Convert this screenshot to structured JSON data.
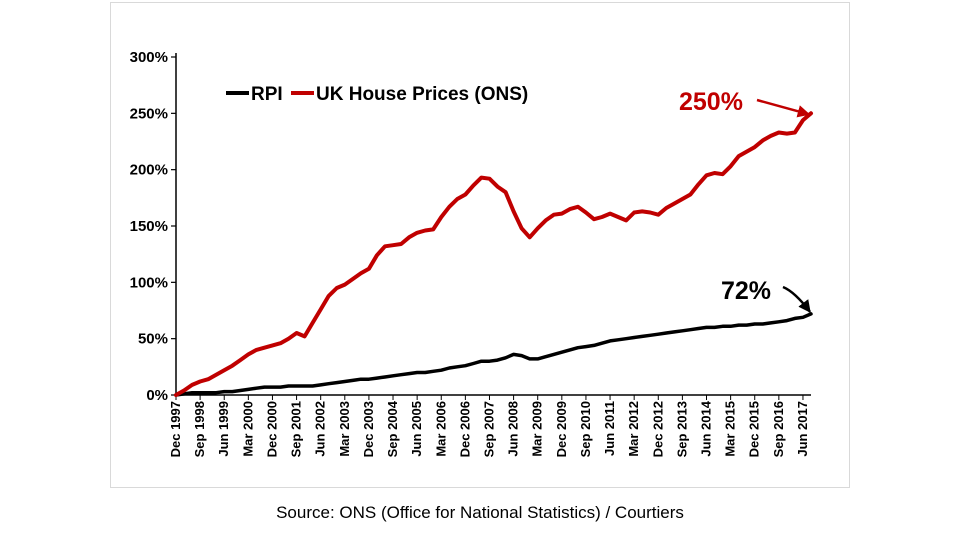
{
  "source_note": "Source: ONS (Office for National Statistics) / Courtiers",
  "chart_data": {
    "type": "line",
    "title": "",
    "xlabel": "",
    "ylabel": "",
    "ylim": [
      0,
      300
    ],
    "yticks": [
      "0%",
      "50%",
      "100%",
      "150%",
      "200%",
      "250%",
      "300%"
    ],
    "legend": {
      "placement": "top-left",
      "entries": [
        "RPI",
        "UK House Prices (ONS)"
      ]
    },
    "x_tick_labels": [
      "Dec 1997",
      "Sep 1998",
      "Jun 1999",
      "Mar 2000",
      "Dec 2000",
      "Sep 2001",
      "Jun 2002",
      "Mar 2003",
      "Dec 2003",
      "Sep 2004",
      "Jun 2005",
      "Mar 2006",
      "Dec 2006",
      "Sep 2007",
      "Jun 2008",
      "Mar 2009",
      "Dec 2009",
      "Sep 2010",
      "Jun 2011",
      "Mar 2012",
      "Dec 2012",
      "Sep 2013",
      "Jun 2014",
      "Mar 2015",
      "Dec 2015",
      "Sep 2016",
      "Jun 2017"
    ],
    "x": [
      "Dec 1997",
      "Mar 1998",
      "Jun 1998",
      "Sep 1998",
      "Dec 1998",
      "Mar 1999",
      "Jun 1999",
      "Sep 1999",
      "Dec 1999",
      "Mar 2000",
      "Jun 2000",
      "Sep 2000",
      "Dec 2000",
      "Mar 2001",
      "Jun 2001",
      "Sep 2001",
      "Dec 2001",
      "Mar 2002",
      "Jun 2002",
      "Sep 2002",
      "Dec 2002",
      "Mar 2003",
      "Jun 2003",
      "Sep 2003",
      "Dec 2003",
      "Mar 2004",
      "Jun 2004",
      "Sep 2004",
      "Dec 2004",
      "Mar 2005",
      "Jun 2005",
      "Sep 2005",
      "Dec 2005",
      "Mar 2006",
      "Jun 2006",
      "Sep 2006",
      "Dec 2006",
      "Mar 2007",
      "Jun 2007",
      "Sep 2007",
      "Dec 2007",
      "Mar 2008",
      "Jun 2008",
      "Sep 2008",
      "Dec 2008",
      "Mar 2009",
      "Jun 2009",
      "Sep 2009",
      "Dec 2009",
      "Mar 2010",
      "Jun 2010",
      "Sep 2010",
      "Dec 2010",
      "Mar 2011",
      "Jun 2011",
      "Sep 2011",
      "Dec 2011",
      "Mar 2012",
      "Jun 2012",
      "Sep 2012",
      "Dec 2012",
      "Mar 2013",
      "Jun 2013",
      "Sep 2013",
      "Dec 2013",
      "Mar 2014",
      "Jun 2014",
      "Sep 2014",
      "Dec 2014",
      "Mar 2015",
      "Jun 2015",
      "Sep 2015",
      "Dec 2015",
      "Mar 2016",
      "Jun 2016",
      "Sep 2016",
      "Dec 2016",
      "Mar 2017",
      "Jun 2017",
      "Sep 2017"
    ],
    "series": [
      {
        "name": "RPI",
        "color": "#000000",
        "values": [
          0,
          1,
          2,
          2,
          2,
          2,
          3,
          3,
          4,
          5,
          6,
          7,
          7,
          7,
          8,
          8,
          8,
          8,
          9,
          10,
          11,
          12,
          13,
          14,
          14,
          15,
          16,
          17,
          18,
          19,
          20,
          20,
          21,
          22,
          24,
          25,
          26,
          28,
          30,
          30,
          31,
          33,
          36,
          35,
          32,
          32,
          34,
          36,
          38,
          40,
          42,
          43,
          44,
          46,
          48,
          49,
          50,
          51,
          52,
          53,
          54,
          55,
          56,
          57,
          58,
          59,
          60,
          60,
          61,
          61,
          62,
          62,
          63,
          63,
          64,
          65,
          66,
          68,
          69,
          72
        ]
      },
      {
        "name": "UK House Prices (ONS)",
        "color": "#c00000",
        "values": [
          0,
          4,
          9,
          12,
          14,
          18,
          22,
          26,
          31,
          36,
          40,
          42,
          44,
          46,
          50,
          55,
          52,
          64,
          76,
          88,
          95,
          98,
          103,
          108,
          112,
          124,
          132,
          133,
          134,
          140,
          144,
          146,
          147,
          158,
          167,
          174,
          178,
          186,
          193,
          192,
          185,
          180,
          163,
          148,
          140,
          148,
          155,
          160,
          161,
          165,
          167,
          162,
          156,
          158,
          161,
          158,
          155,
          162,
          163,
          162,
          160,
          166,
          170,
          174,
          178,
          187,
          195,
          197,
          196,
          203,
          212,
          216,
          220,
          226,
          230,
          233,
          232,
          233,
          244,
          250
        ]
      }
    ],
    "annotations": [
      {
        "text": "250%",
        "color": "#c00000",
        "points_to": "Sep 2017",
        "series": "UK House Prices (ONS)"
      },
      {
        "text": "72%",
        "color": "#000000",
        "points_to": "Sep 2017",
        "series": "RPI"
      }
    ]
  }
}
